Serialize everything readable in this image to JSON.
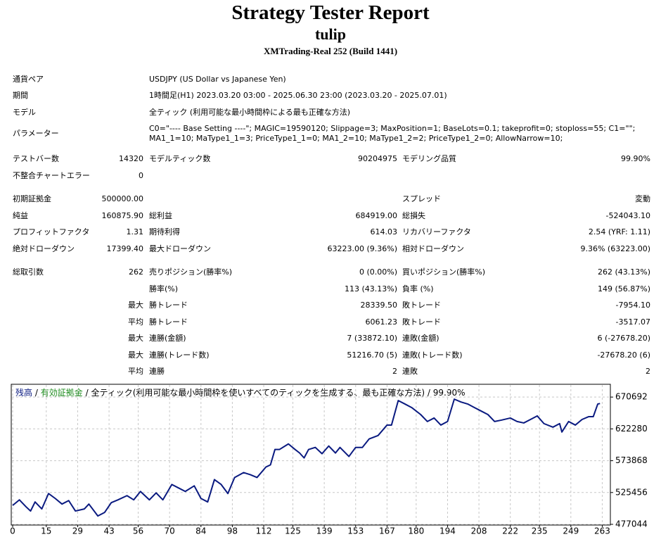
{
  "header": {
    "title": "Strategy Tester Report",
    "subtitle": "tulip",
    "server": "XMTrading-Real 252 (Build 1441)"
  },
  "info": [
    {
      "label": "通貨ペア",
      "value": [
        "USDJPY (US Dollar vs Japanese Yen)"
      ]
    },
    {
      "label": "期間",
      "value": [
        "1時間足(H1) 2023.03.20 03:00 - 2025.06.30 23:00 (2023.03.20 - 2025.07.01)"
      ]
    },
    {
      "label": "モデル",
      "value": [
        "全ティック (利用可能な最小時間枠による最も正確な方法)"
      ]
    },
    {
      "label": "パラメーター",
      "value": [
        "C0=\"---- Base Setting ----\"; MAGIC=19590120; Slippage=3; MaxPosition=1; BaseLots=0.1; takeprofit=0; stoploss=55; C1=\"\";",
        "MA1_1=10; MaType1_1=3; PriceType1_1=0; MA1_2=10; MaType1_2=2; PriceType1_2=0; AllowNarrow=10;"
      ]
    }
  ],
  "stats": [
    [
      {
        "c1": "テストバー数",
        "c2": "14320",
        "c3": "モデルティック数",
        "c4": "90204975",
        "c5": "モデリング品質",
        "c6": "99.90%"
      },
      {
        "c1": "不整合チャートエラー",
        "c2": "0"
      }
    ],
    [
      {
        "c1": "初期証拠金",
        "c2": "500000.00",
        "c5": "スプレッド",
        "c6": "変動"
      },
      {
        "c1": "純益",
        "c2": "160875.90",
        "c3": "総利益",
        "c4": "684919.00",
        "c5": "総損失",
        "c6": "-524043.10"
      },
      {
        "c1": "プロフィットファクタ",
        "c2": "1.31",
        "c3": "期待利得",
        "c4": "614.03",
        "c5": "リカバリーファクタ",
        "c6": "2.54 (YRF: 1.11)"
      },
      {
        "c1": "絶対ドローダウン",
        "c2": "17399.40",
        "c3": "最大ドローダウン",
        "c4": "63223.00 (9.36%)",
        "c5": "相対ドローダウン",
        "c6": "9.36% (63223.00)"
      }
    ],
    [
      {
        "c1": "総取引数",
        "c2": "262",
        "c3": "売りポジション(勝率%)",
        "c4": "0 (0.00%)",
        "c5": "買いポジション(勝率%)",
        "c6": "262 (43.13%)"
      },
      {
        "c3": "勝率(%)",
        "c4": "113 (43.13%)",
        "c5": "負率 (%)",
        "c6": "149 (56.87%)"
      },
      {
        "c2": "最大",
        "c3": "勝トレード",
        "c4": "28339.50",
        "c5": "敗トレード",
        "c6": "-7954.10"
      },
      {
        "c2": "平均",
        "c3": "勝トレード",
        "c4": "6061.23",
        "c5": "敗トレード",
        "c6": "-3517.07"
      },
      {
        "c2": "最大",
        "c3": "連勝(金額)",
        "c4": "7 (33872.10)",
        "c5": "連敗(金額)",
        "c6": "6 (-27678.20)"
      },
      {
        "c2": "最大",
        "c3": "連勝(トレード数)",
        "c4": "51216.70 (5)",
        "c5": "連敗(トレード数)",
        "c6": "-27678.20 (6)"
      },
      {
        "c2": "平均",
        "c3": "連勝",
        "c4": "2",
        "c5": "連敗",
        "c6": "2"
      }
    ]
  ],
  "chart_data": {
    "type": "line",
    "equity_name": "有効証拠金",
    "equity_color": "#1e8c1e",
    "separator": "/",
    "model_text": "全ティック(利用可能な最小時間枠を使いすべてのティックを生成する、最も正確な方法)",
    "quality": "99.90%",
    "x": [
      0,
      3,
      6,
      8,
      10,
      13,
      16,
      19,
      22,
      25,
      28,
      32,
      34,
      38,
      41,
      44,
      47,
      51,
      54,
      57,
      61,
      64,
      67,
      71,
      74,
      77,
      81,
      84,
      87,
      90,
      93,
      96,
      99,
      103,
      106,
      109,
      113,
      115,
      117,
      119,
      123,
      126,
      128,
      130,
      132,
      135,
      138,
      141,
      144,
      146,
      150,
      153,
      156,
      159,
      163,
      167,
      169,
      172,
      175,
      178,
      182,
      185,
      188,
      191,
      194,
      197,
      200,
      203,
      206,
      209,
      212,
      215,
      218,
      222,
      225,
      228,
      231,
      234,
      237,
      241,
      244,
      245,
      248,
      251,
      254,
      257,
      259,
      261,
      262
    ],
    "series": [
      {
        "name": "残高",
        "color": "#0a1a80",
        "values": [
          505800,
          514300,
          503600,
          497300,
          511100,
          500500,
          523900,
          516400,
          507900,
          513200,
          497300,
          500500,
          507900,
          489800,
          495100,
          510000,
          514300,
          520700,
          514300,
          527100,
          514300,
          524900,
          514300,
          537700,
          532400,
          527100,
          535600,
          516400,
          511100,
          545100,
          537700,
          523900,
          548300,
          555800,
          552600,
          548300,
          564300,
          567500,
          590900,
          590900,
          599400,
          590900,
          585600,
          578100,
          590900,
          594100,
          584500,
          596200,
          585600,
          594100,
          580300,
          594100,
          594100,
          606900,
          612200,
          628100,
          628100,
          665400,
          660100,
          654700,
          644100,
          633500,
          638800,
          628100,
          633500,
          667500,
          663200,
          660100,
          654700,
          649400,
          644100,
          633500,
          635600,
          638800,
          633500,
          631300,
          636600,
          642000,
          630300,
          624900,
          630300,
          617500,
          633500,
          628100,
          636600,
          640900,
          640900,
          660100,
          660900
        ]
      }
    ],
    "xlim": [
      0,
      266
    ],
    "ylim": [
      477044,
      688000
    ],
    "xticks": [
      0,
      15,
      29,
      43,
      56,
      70,
      84,
      98,
      112,
      125,
      139,
      153,
      167,
      180,
      194,
      208,
      222,
      235,
      249,
      263
    ],
    "yticks": [
      477044,
      525456,
      573868,
      622280,
      670692
    ],
    "grid": true
  }
}
